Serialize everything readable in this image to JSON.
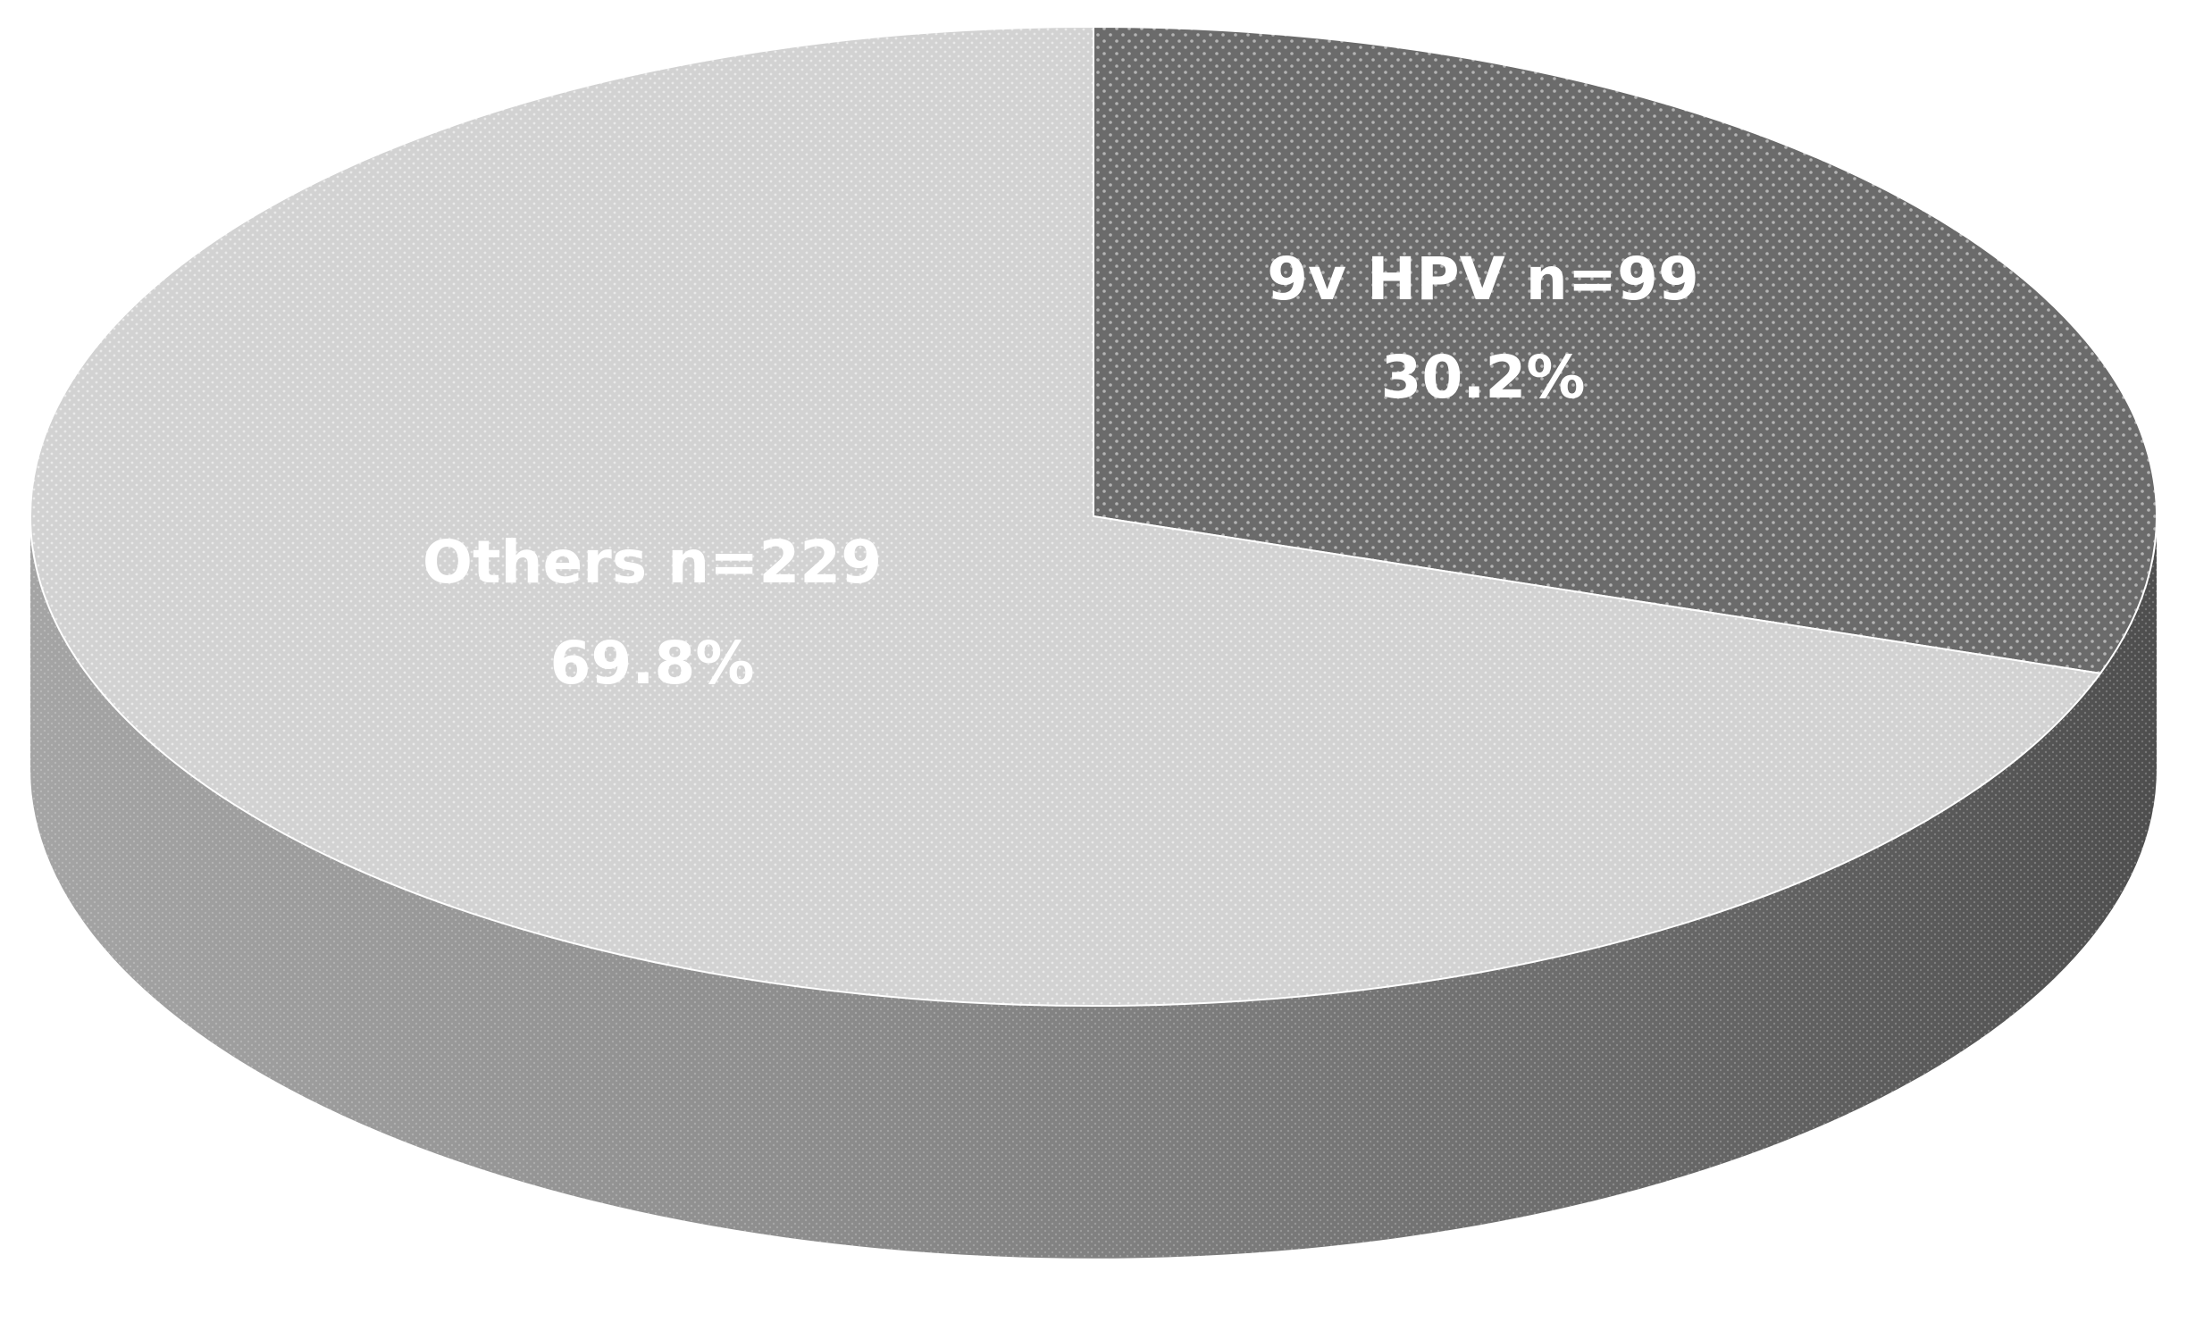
{
  "chart_data": {
    "type": "pie",
    "title": "",
    "style": "3d",
    "slices": [
      {
        "label": "9v HPV n=99",
        "n": 99,
        "percent_label": "30.2%",
        "value": 30.2,
        "color": "#6e6e6e"
      },
      {
        "label": "Others n=229",
        "n": 229,
        "percent_label": "69.8%",
        "value": 69.8,
        "color": "#d4d4d4"
      }
    ]
  }
}
